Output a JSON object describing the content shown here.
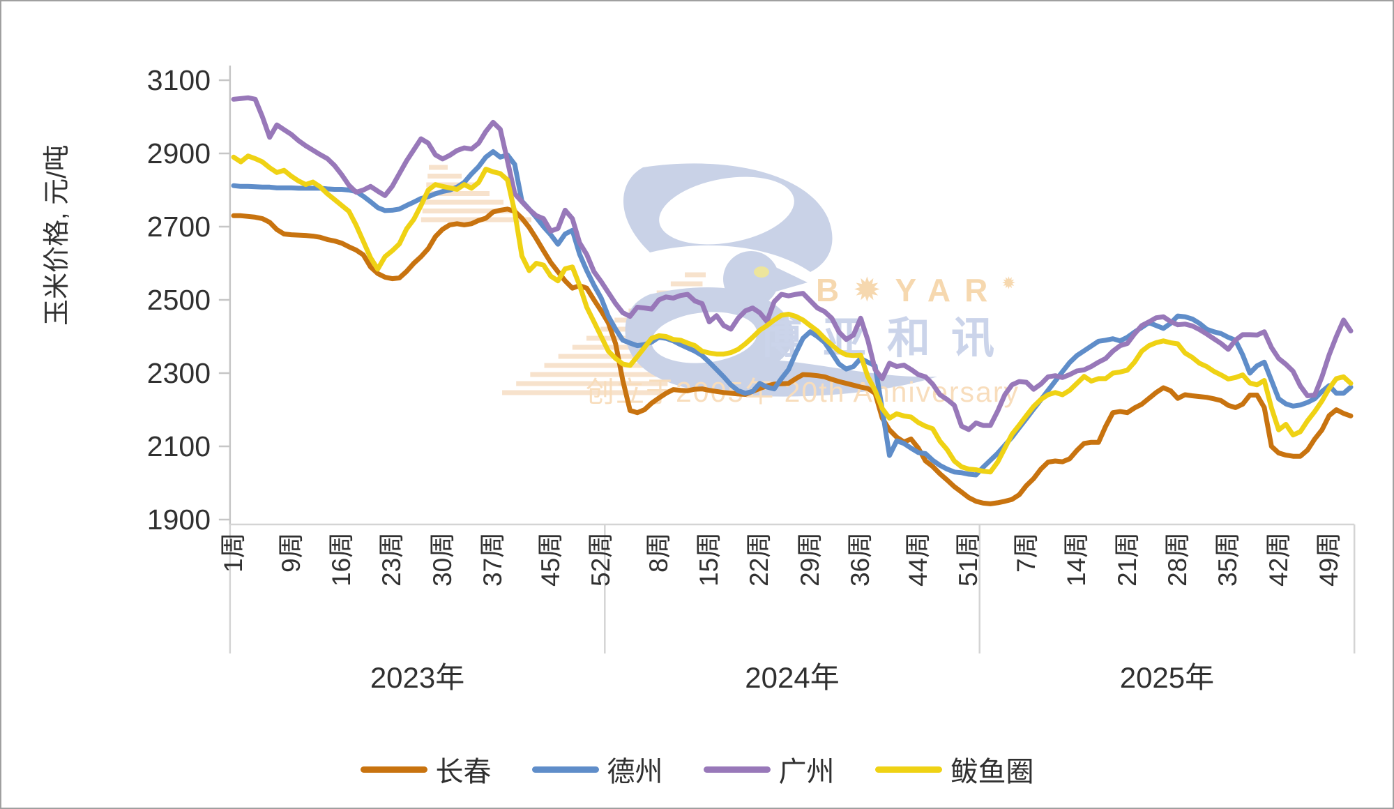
{
  "chart_data": {
    "type": "line",
    "title": "",
    "ylabel": "玉米价格, 元/吨",
    "ylim": [
      1900,
      3100
    ],
    "yticks": [
      3100,
      2900,
      2700,
      2500,
      2300,
      2100,
      1900
    ],
    "grid": false,
    "legend_position": "bottom-center",
    "x_structure": "weekly data grouped by year",
    "years": [
      {
        "label": "2023年",
        "weeks": 52,
        "tick_weeks": [
          1,
          9,
          16,
          23,
          30,
          37,
          45,
          52
        ],
        "tick_labels": [
          "1周",
          "9周",
          "16周",
          "23周",
          "30周",
          "37周",
          "45周",
          "52周"
        ]
      },
      {
        "label": "2024年",
        "weeks": 52,
        "tick_weeks": [
          8,
          15,
          22,
          29,
          36,
          44,
          51
        ],
        "tick_labels": [
          "8周",
          "15周",
          "22周",
          "29周",
          "36周",
          "44周",
          "51周"
        ]
      },
      {
        "label": "2025年",
        "weeks": 52,
        "tick_weeks": [
          7,
          14,
          21,
          28,
          35,
          42,
          49
        ],
        "tick_labels": [
          "7周",
          "14周",
          "21周",
          "28周",
          "35周",
          "42周",
          "49周"
        ]
      }
    ],
    "series": [
      {
        "name": "长春",
        "color": "#C8730F",
        "values": [
          2730,
          2730,
          2728,
          2726,
          2722,
          2712,
          2692,
          2680,
          2678,
          2677,
          2676,
          2674,
          2671,
          2665,
          2661,
          2655,
          2645,
          2636,
          2623,
          2590,
          2572,
          2562,
          2558,
          2560,
          2578,
          2600,
          2618,
          2640,
          2673,
          2693,
          2705,
          2708,
          2705,
          2708,
          2717,
          2723,
          2740,
          2745,
          2748,
          2742,
          2723,
          2698,
          2667,
          2634,
          2602,
          2577,
          2552,
          2532,
          2539,
          2532,
          2500,
          2470,
          2437,
          2380,
          2280,
          2198,
          2192,
          2200,
          2218,
          2232,
          2245,
          2255,
          2253,
          2252,
          2256,
          2257,
          2253,
          2250,
          2247,
          2245,
          2243,
          2242,
          2250,
          2258,
          2265,
          2270,
          2271,
          2272,
          2285,
          2296,
          2295,
          2293,
          2290,
          2283,
          2277,
          2272,
          2267,
          2262,
          2258,
          2245,
          2177,
          2145,
          2125,
          2112,
          2120,
          2095,
          2060,
          2045,
          2025,
          2008,
          1990,
          1975,
          1960,
          1950,
          1945,
          1943,
          1946,
          1950,
          1955,
          1968,
          1993,
          2012,
          2038,
          2057,
          2060,
          2058,
          2066,
          2089,
          2108,
          2111,
          2111,
          2155,
          2192,
          2195,
          2192,
          2205,
          2215,
          2231,
          2247,
          2260,
          2252,
          2231,
          2241,
          2238,
          2236,
          2234,
          2230,
          2225,
          2212,
          2206,
          2215,
          2240,
          2240,
          2206,
          2100,
          2082,
          2076,
          2073,
          2073,
          2090,
          2120,
          2145,
          2184,
          2200,
          2190,
          2183
        ]
      },
      {
        "name": "德州",
        "color": "#5F8DC9",
        "values": [
          2812,
          2810,
          2810,
          2809,
          2808,
          2808,
          2806,
          2806,
          2806,
          2805,
          2805,
          2805,
          2805,
          2803,
          2802,
          2802,
          2800,
          2796,
          2783,
          2768,
          2752,
          2744,
          2745,
          2748,
          2758,
          2767,
          2777,
          2782,
          2790,
          2796,
          2800,
          2808,
          2821,
          2844,
          2864,
          2890,
          2905,
          2890,
          2896,
          2870,
          2770,
          2748,
          2725,
          2700,
          2678,
          2652,
          2680,
          2690,
          2625,
          2580,
          2540,
          2505,
          2455,
          2420,
          2390,
          2382,
          2375,
          2378,
          2385,
          2398,
          2395,
          2388,
          2378,
          2369,
          2360,
          2348,
          2330,
          2310,
          2290,
          2268,
          2252,
          2245,
          2250,
          2272,
          2262,
          2257,
          2285,
          2310,
          2355,
          2395,
          2413,
          2400,
          2384,
          2355,
          2325,
          2311,
          2318,
          2340,
          2330,
          2320,
          2200,
          2075,
          2115,
          2108,
          2095,
          2083,
          2080,
          2062,
          2048,
          2038,
          2030,
          2028,
          2024,
          2022,
          2043,
          2062,
          2081,
          2103,
          2125,
          2151,
          2176,
          2202,
          2227,
          2253,
          2278,
          2304,
          2329,
          2348,
          2361,
          2374,
          2387,
          2390,
          2394,
          2388,
          2398,
          2412,
          2425,
          2438,
          2430,
          2422,
          2436,
          2456,
          2454,
          2448,
          2436,
          2420,
          2413,
          2408,
          2398,
          2390,
          2350,
          2300,
          2320,
          2330,
          2280,
          2230,
          2216,
          2210,
          2213,
          2220,
          2230,
          2250,
          2266,
          2245,
          2245,
          2262
        ]
      },
      {
        "name": "广州",
        "color": "#9878B9",
        "values": [
          3048,
          3050,
          3052,
          3048,
          3000,
          2944,
          2978,
          2965,
          2952,
          2935,
          2921,
          2909,
          2897,
          2886,
          2867,
          2842,
          2813,
          2794,
          2800,
          2810,
          2797,
          2785,
          2810,
          2845,
          2880,
          2910,
          2940,
          2928,
          2896,
          2885,
          2895,
          2908,
          2915,
          2912,
          2928,
          2960,
          2985,
          2966,
          2880,
          2790,
          2768,
          2747,
          2730,
          2722,
          2688,
          2695,
          2745,
          2722,
          2656,
          2624,
          2577,
          2550,
          2520,
          2490,
          2465,
          2455,
          2480,
          2478,
          2475,
          2500,
          2508,
          2505,
          2512,
          2515,
          2497,
          2490,
          2440,
          2457,
          2430,
          2420,
          2450,
          2470,
          2478,
          2465,
          2441,
          2495,
          2515,
          2511,
          2515,
          2518,
          2498,
          2478,
          2468,
          2450,
          2412,
          2392,
          2404,
          2450,
          2390,
          2310,
          2285,
          2327,
          2318,
          2322,
          2310,
          2296,
          2290,
          2270,
          2241,
          2228,
          2212,
          2155,
          2146,
          2164,
          2157,
          2157,
          2196,
          2241,
          2268,
          2277,
          2275,
          2256,
          2270,
          2290,
          2293,
          2288,
          2296,
          2306,
          2309,
          2318,
          2330,
          2340,
          2360,
          2375,
          2381,
          2407,
          2430,
          2440,
          2451,
          2454,
          2441,
          2432,
          2434,
          2429,
          2419,
          2407,
          2394,
          2381,
          2365,
          2390,
          2405,
          2405,
          2404,
          2413,
          2370,
          2340,
          2324,
          2305,
          2265,
          2238,
          2240,
          2290,
          2350,
          2400,
          2445,
          2415
        ]
      },
      {
        "name": "鲅鱼圈",
        "color": "#EFD214",
        "values": [
          2890,
          2877,
          2893,
          2886,
          2877,
          2861,
          2848,
          2854,
          2838,
          2825,
          2815,
          2822,
          2809,
          2790,
          2774,
          2758,
          2742,
          2704,
          2660,
          2615,
          2584,
          2618,
          2634,
          2653,
          2694,
          2720,
          2758,
          2800,
          2815,
          2810,
          2806,
          2802,
          2815,
          2805,
          2821,
          2857,
          2850,
          2845,
          2828,
          2740,
          2620,
          2580,
          2600,
          2595,
          2565,
          2552,
          2585,
          2590,
          2540,
          2480,
          2440,
          2400,
          2360,
          2340,
          2325,
          2321,
          2345,
          2370,
          2395,
          2402,
          2400,
          2392,
          2390,
          2382,
          2375,
          2360,
          2355,
          2352,
          2352,
          2356,
          2365,
          2380,
          2398,
          2417,
          2430,
          2445,
          2458,
          2461,
          2455,
          2445,
          2430,
          2415,
          2395,
          2377,
          2360,
          2350,
          2348,
          2349,
          2290,
          2253,
          2203,
          2177,
          2189,
          2183,
          2180,
          2165,
          2155,
          2148,
          2114,
          2091,
          2060,
          2044,
          2038,
          2036,
          2032,
          2030,
          2057,
          2095,
          2133,
          2158,
          2184,
          2209,
          2228,
          2241,
          2247,
          2241,
          2253,
          2272,
          2291,
          2278,
          2285,
          2285,
          2300,
          2303,
          2308,
          2330,
          2360,
          2375,
          2383,
          2388,
          2383,
          2380,
          2355,
          2343,
          2327,
          2318,
          2305,
          2295,
          2284,
          2288,
          2295,
          2273,
          2268,
          2280,
          2205,
          2145,
          2160,
          2131,
          2140,
          2170,
          2195,
          2224,
          2258,
          2285,
          2290,
          2272
        ]
      }
    ]
  },
  "watermark": {
    "brand_pre": "B",
    "brand_o": "✹",
    "brand_post": "YAR",
    "brand_mark": "✹",
    "brand_cn": "博亚和讯",
    "tagline": "创立于2005年 20th Anniversary",
    "colors": {
      "brand": "#F6D8AF",
      "brand_cn": "#CBD4EA",
      "tagline": "#F8DDBC",
      "bird": "#C9D2E7",
      "bird_eye": "#EDE59C",
      "stripes": "#F7E2CC"
    }
  },
  "style": {
    "background": "#FFFFFF",
    "border": "#A0A0A0",
    "y_axis_line": "#C6C6C6",
    "x_axis_line": "#D4D4D4",
    "text_color": "#303030",
    "line_width": 7
  }
}
